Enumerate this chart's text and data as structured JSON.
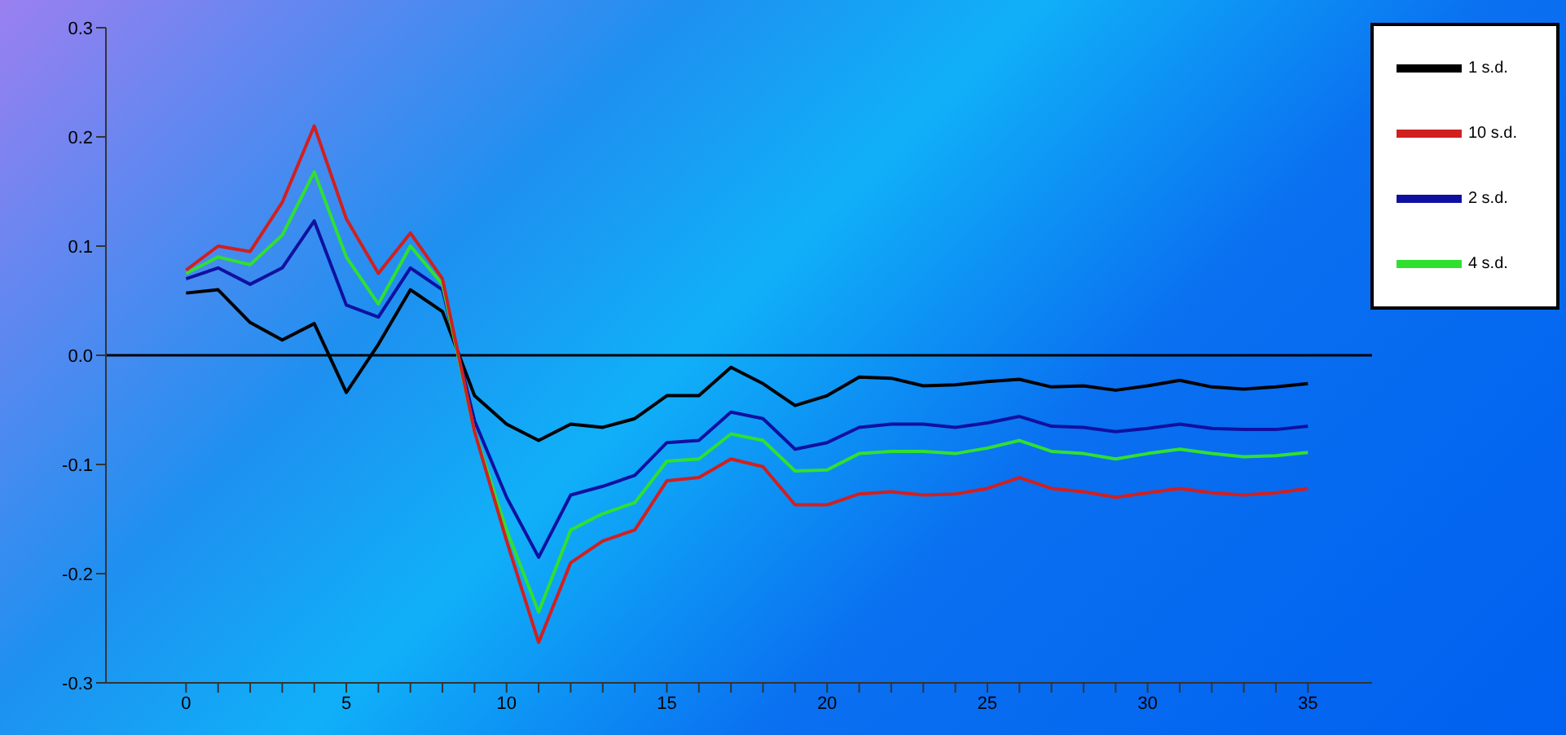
{
  "chart_data": {
    "type": "line",
    "x": [
      0,
      1,
      2,
      3,
      4,
      5,
      6,
      7,
      8,
      9,
      10,
      11,
      12,
      13,
      14,
      15,
      16,
      17,
      18,
      19,
      20,
      21,
      22,
      23,
      24,
      25,
      26,
      27,
      28,
      29,
      30,
      31,
      32,
      33,
      34,
      35
    ],
    "series": [
      {
        "name": "1 s.d.",
        "color": "#000000",
        "values": [
          0.057,
          0.06,
          0.03,
          0.014,
          0.029,
          -0.034,
          0.01,
          0.06,
          0.04,
          -0.037,
          -0.063,
          -0.078,
          -0.063,
          -0.066,
          -0.058,
          -0.037,
          -0.037,
          -0.011,
          -0.026,
          -0.046,
          -0.037,
          -0.02,
          -0.021,
          -0.028,
          -0.027,
          -0.024,
          -0.022,
          -0.029,
          -0.028,
          -0.032,
          -0.028,
          -0.023,
          -0.029,
          -0.031,
          -0.029,
          -0.026
        ]
      },
      {
        "name": "2 s.d.",
        "color": "#1010a0",
        "values": [
          0.07,
          0.08,
          0.065,
          0.08,
          0.123,
          0.046,
          0.035,
          0.08,
          0.06,
          -0.06,
          -0.13,
          -0.185,
          -0.128,
          -0.12,
          -0.11,
          -0.08,
          -0.078,
          -0.052,
          -0.058,
          -0.086,
          -0.08,
          -0.066,
          -0.063,
          -0.063,
          -0.066,
          -0.062,
          -0.056,
          -0.065,
          -0.066,
          -0.07,
          -0.067,
          -0.063,
          -0.067,
          -0.068,
          -0.068,
          -0.065
        ]
      },
      {
        "name": "4 s.d.",
        "color": "#30e030",
        "values": [
          0.075,
          0.09,
          0.083,
          0.11,
          0.168,
          0.09,
          0.047,
          0.1,
          0.065,
          -0.07,
          -0.16,
          -0.235,
          -0.16,
          -0.145,
          -0.135,
          -0.097,
          -0.095,
          -0.072,
          -0.078,
          -0.106,
          -0.105,
          -0.09,
          -0.088,
          -0.088,
          -0.09,
          -0.085,
          -0.078,
          -0.088,
          -0.09,
          -0.095,
          -0.09,
          -0.086,
          -0.09,
          -0.093,
          -0.092,
          -0.089
        ]
      },
      {
        "name": "10 s.d.",
        "color": "#d02020",
        "values": [
          0.078,
          0.1,
          0.095,
          0.14,
          0.21,
          0.125,
          0.075,
          0.112,
          0.07,
          -0.07,
          -0.17,
          -0.263,
          -0.19,
          -0.17,
          -0.16,
          -0.115,
          -0.112,
          -0.095,
          -0.102,
          -0.137,
          -0.137,
          -0.127,
          -0.125,
          -0.128,
          -0.127,
          -0.122,
          -0.112,
          -0.122,
          -0.125,
          -0.13,
          -0.126,
          -0.122,
          -0.126,
          -0.128,
          -0.126,
          -0.122
        ]
      }
    ],
    "xlim": [
      -2.5,
      37
    ],
    "xticks": [
      0,
      {
        "value": 1,
        "label": null
      },
      {
        "value": 2,
        "label": null
      },
      {
        "value": 3,
        "label": null
      },
      {
        "value": 4,
        "label": null
      },
      5,
      {
        "value": 6,
        "label": null
      },
      {
        "value": 7,
        "label": null
      },
      {
        "value": 8,
        "label": null
      },
      {
        "value": 9,
        "label": null
      },
      10,
      {
        "value": 11,
        "label": null
      },
      {
        "value": 12,
        "label": null
      },
      {
        "value": 13,
        "label": null
      },
      {
        "value": 14,
        "label": null
      },
      15,
      {
        "value": 16,
        "label": null
      },
      {
        "value": 17,
        "label": null
      },
      {
        "value": 18,
        "label": null
      },
      {
        "value": 19,
        "label": null
      },
      20,
      {
        "value": 21,
        "label": null
      },
      {
        "value": 22,
        "label": null
      },
      {
        "value": 23,
        "label": null
      },
      {
        "value": 24,
        "label": null
      },
      25,
      {
        "value": 26,
        "label": null
      },
      {
        "value": 27,
        "label": null
      },
      {
        "value": 28,
        "label": null
      },
      {
        "value": 29,
        "label": null
      },
      30,
      {
        "value": 31,
        "label": null
      },
      {
        "value": 32,
        "label": null
      },
      {
        "value": 33,
        "label": null
      },
      {
        "value": 34,
        "label": null
      },
      35
    ],
    "ylim": [
      -0.3,
      0.3
    ],
    "yticks": [
      -0.3,
      -0.2,
      -0.1,
      {
        "value": 0,
        "label": "0.0"
      },
      0.1,
      0.2,
      0.3
    ],
    "ref_lines": [
      {
        "axis": "y",
        "value": 0,
        "color": "#000000"
      }
    ],
    "legend": "top right",
    "grid": false,
    "marker": "none",
    "line_style": "solid"
  }
}
